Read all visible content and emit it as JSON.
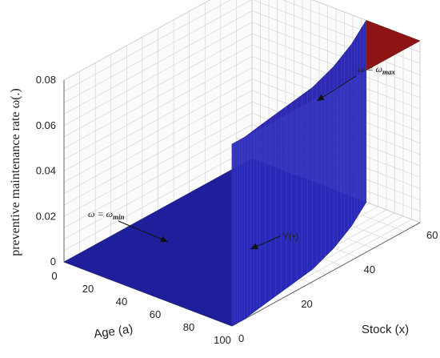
{
  "chart_data": {
    "type": "surface3d",
    "zlabel": "preventive maintenance rate ω(.)",
    "xlabel": "Age (a)",
    "ylabel": "Stock (x)",
    "zlim": [
      0,
      0.08
    ],
    "xlim": [
      0,
      100
    ],
    "ylim": [
      0,
      60
    ],
    "z_ticks": [
      "0",
      "0.02",
      "0.04",
      "0.06",
      "0.08"
    ],
    "x_ticks": [
      "0",
      "20",
      "40",
      "60",
      "80",
      "100"
    ],
    "y_ticks": [
      "0",
      "20",
      "40",
      "60"
    ],
    "grid": true,
    "regions": [
      {
        "label": "ω = ω",
        "label_sub": "min",
        "z": 0,
        "color": "#1f1f9c"
      },
      {
        "label": "ω = ω",
        "label_sub": "max",
        "z": 0.08,
        "color": "#8e1414"
      }
    ],
    "boundary": {
      "label": "Υ(•)",
      "points": [
        {
          "a": 100,
          "x": 0
        },
        {
          "a": 100,
          "x": 4
        },
        {
          "a": 98,
          "x": 10
        },
        {
          "a": 95,
          "x": 20
        },
        {
          "a": 92,
          "x": 30
        },
        {
          "a": 86,
          "x": 40
        },
        {
          "a": 78,
          "x": 50
        },
        {
          "a": 68,
          "x": 60
        }
      ]
    }
  }
}
